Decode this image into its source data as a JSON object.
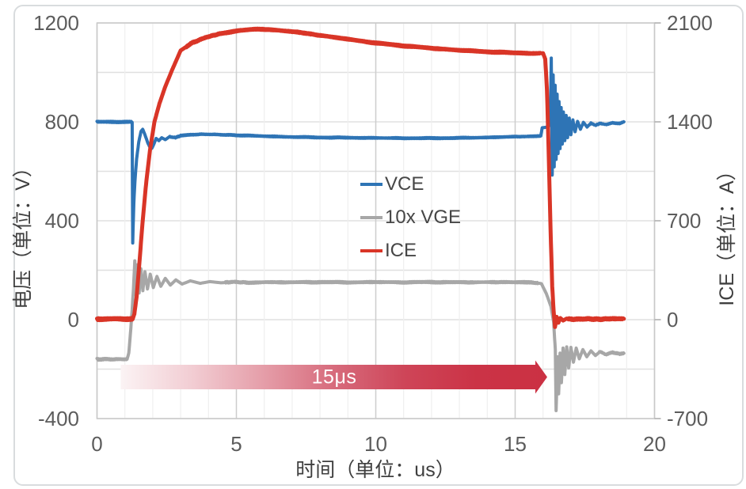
{
  "card": {
    "background": "#FFFFFF",
    "border_color": "#D9DCDE"
  },
  "chart_data": {
    "type": "line",
    "title": "",
    "x_axis": {
      "label": "时间（单位：us）",
      "range": [
        0,
        20
      ],
      "major_ticks": [
        0,
        5,
        10,
        15,
        20
      ],
      "minor_step": 1,
      "grid": true
    },
    "y_axis_left": {
      "label": "电压（单位：V）",
      "range": [
        -400,
        1200
      ],
      "ticks": [
        1200,
        800,
        400,
        0,
        -400
      ],
      "grid_step": 200
    },
    "y_axis_right": {
      "label": "ICE（单位：A）",
      "range": [
        -700,
        2100
      ],
      "ticks": [
        2100,
        1400,
        700,
        0,
        -700
      ]
    },
    "legend": {
      "position": "center",
      "items": [
        {
          "label": "VCE",
          "color": "#2E74B5"
        },
        {
          "label": "10x VGE",
          "color": "#A7A7A7"
        },
        {
          "label": "ICE",
          "color": "#D93527"
        }
      ]
    },
    "annotation": {
      "label": "15μs",
      "text_color": "#FFFFFF",
      "t_start": 0.85,
      "t_end": 16.15,
      "gradient": [
        "#FBF3F4",
        "#F2CDD3",
        "#E59EA9",
        "#D76B7C",
        "#CE4558",
        "#CB3346",
        "#CB3143"
      ]
    },
    "grid_colors": {
      "h_line": "#E0E0E0",
      "v_minor": "#EFEFEF",
      "v_major": "#CDCDCD",
      "plot_border": "#C9C9C9",
      "right_tick": "#ABABAB"
    },
    "series": [
      {
        "name": "VCE",
        "axis": "left",
        "color": "#2E74B5",
        "width": 4,
        "seed": 11,
        "noise": [
          [
            0,
            1.23,
            3
          ],
          [
            2.6,
            15.9,
            2.5
          ],
          [
            17.6,
            18.9,
            2
          ]
        ],
        "points": [
          [
            0,
            800
          ],
          [
            1.24,
            800
          ],
          [
            1.26,
            798
          ],
          [
            1.28,
            310
          ],
          [
            1.32,
            470
          ],
          [
            1.36,
            560
          ],
          [
            1.42,
            650
          ],
          [
            1.5,
            720
          ],
          [
            1.58,
            762
          ],
          [
            1.64,
            770
          ],
          [
            1.72,
            748
          ],
          [
            1.82,
            715
          ],
          [
            1.9,
            697
          ],
          [
            1.97,
            693
          ],
          [
            2.04,
            710
          ],
          [
            2.12,
            733
          ],
          [
            2.22,
            724
          ],
          [
            2.32,
            736
          ],
          [
            2.45,
            728
          ],
          [
            2.6,
            740
          ],
          [
            2.8,
            736
          ],
          [
            3,
            744
          ],
          [
            3.3,
            747
          ],
          [
            3.7,
            750
          ],
          [
            4.2,
            749
          ],
          [
            5,
            746
          ],
          [
            6,
            742
          ],
          [
            7,
            739
          ],
          [
            8,
            737
          ],
          [
            9,
            736
          ],
          [
            10,
            735
          ],
          [
            11,
            734
          ],
          [
            12,
            734
          ],
          [
            13,
            735
          ],
          [
            14,
            737
          ],
          [
            15,
            740
          ],
          [
            15.5,
            741
          ],
          [
            15.92,
            743
          ],
          [
            15.97,
            776
          ],
          [
            16.1,
            778
          ],
          [
            16.2,
            781
          ],
          [
            16.26,
            795
          ],
          [
            16.295,
            1058
          ],
          [
            16.33,
            585
          ],
          [
            16.365,
            990
          ],
          [
            16.4,
            618
          ],
          [
            16.435,
            948
          ],
          [
            16.47,
            648
          ],
          [
            16.505,
            912
          ],
          [
            16.54,
            672
          ],
          [
            16.575,
            882
          ],
          [
            16.61,
            692
          ],
          [
            16.65,
            858
          ],
          [
            16.69,
            710
          ],
          [
            16.73,
            840
          ],
          [
            16.78,
            724
          ],
          [
            16.83,
            826
          ],
          [
            16.88,
            736
          ],
          [
            16.94,
            815
          ],
          [
            17,
            748
          ],
          [
            17.07,
            808
          ],
          [
            17.15,
            760
          ],
          [
            17.24,
            802
          ],
          [
            17.34,
            770
          ],
          [
            17.45,
            798
          ],
          [
            17.58,
            779
          ],
          [
            17.72,
            795
          ],
          [
            17.88,
            786
          ],
          [
            18.05,
            794
          ],
          [
            18.25,
            789
          ],
          [
            18.5,
            796
          ],
          [
            18.75,
            793
          ],
          [
            18.9,
            800
          ]
        ]
      },
      {
        "name": "10x VGE",
        "axis": "left",
        "color": "#A7A7A7",
        "width": 4,
        "seed": 23,
        "noise": [
          [
            0,
            1.07,
            4
          ],
          [
            4.6,
            15.85,
            3.5
          ],
          [
            18,
            18.9,
            3
          ]
        ],
        "points": [
          [
            0,
            -160
          ],
          [
            1.08,
            -160
          ],
          [
            1.14,
            -135
          ],
          [
            1.2,
            -55
          ],
          [
            1.26,
            40
          ],
          [
            1.31,
            130
          ],
          [
            1.355,
            238
          ],
          [
            1.4,
            100
          ],
          [
            1.45,
            222
          ],
          [
            1.51,
            108
          ],
          [
            1.575,
            206
          ],
          [
            1.645,
            117
          ],
          [
            1.72,
            194
          ],
          [
            1.81,
            124
          ],
          [
            1.91,
            184
          ],
          [
            2.02,
            130
          ],
          [
            2.15,
            175
          ],
          [
            2.29,
            135
          ],
          [
            2.45,
            167
          ],
          [
            2.63,
            140
          ],
          [
            2.83,
            161
          ],
          [
            3.05,
            144
          ],
          [
            3.35,
            157
          ],
          [
            3.7,
            147
          ],
          [
            4.05,
            154
          ],
          [
            4.45,
            149
          ],
          [
            4.9,
            153
          ],
          [
            5.4,
            150
          ],
          [
            6,
            152
          ],
          [
            7,
            151
          ],
          [
            8,
            152
          ],
          [
            9,
            151
          ],
          [
            10,
            152
          ],
          [
            11,
            151
          ],
          [
            12,
            152
          ],
          [
            13,
            151
          ],
          [
            14,
            152
          ],
          [
            15,
            151
          ],
          [
            15.6,
            151
          ],
          [
            15.94,
            146
          ],
          [
            16.12,
            105
          ],
          [
            16.28,
            55
          ],
          [
            16.38,
            -10
          ],
          [
            16.44,
            -120
          ],
          [
            16.47,
            -368
          ],
          [
            16.52,
            -150
          ],
          [
            16.56,
            -300
          ],
          [
            16.61,
            -135
          ],
          [
            16.66,
            -255
          ],
          [
            16.72,
            -115
          ],
          [
            16.78,
            -222
          ],
          [
            16.85,
            -110
          ],
          [
            16.92,
            -195
          ],
          [
            17,
            -112
          ],
          [
            17.09,
            -172
          ],
          [
            17.19,
            -115
          ],
          [
            17.3,
            -158
          ],
          [
            17.43,
            -121
          ],
          [
            17.57,
            -150
          ],
          [
            17.72,
            -126
          ],
          [
            17.88,
            -145
          ],
          [
            18.05,
            -129
          ],
          [
            18.25,
            -141
          ],
          [
            18.5,
            -132
          ],
          [
            18.75,
            -139
          ],
          [
            18.9,
            -136
          ]
        ]
      },
      {
        "name": "ICE",
        "axis": "right",
        "color": "#D93527",
        "width": 5,
        "seed": 37,
        "noise": [
          [
            0,
            1.27,
            10
          ],
          [
            3.2,
            15.9,
            6
          ],
          [
            16.9,
            18.9,
            8
          ]
        ],
        "points": [
          [
            0,
            5
          ],
          [
            1.28,
            5
          ],
          [
            1.34,
            40
          ],
          [
            1.42,
            160
          ],
          [
            1.52,
            400
          ],
          [
            1.63,
            680
          ],
          [
            1.76,
            960
          ],
          [
            1.9,
            1200
          ],
          [
            2.06,
            1400
          ],
          [
            2.24,
            1530
          ],
          [
            2.44,
            1645
          ],
          [
            2.7,
            1770
          ],
          [
            3,
            1905
          ],
          [
            3.4,
            1958
          ],
          [
            3.9,
            1998
          ],
          [
            4.5,
            2028
          ],
          [
            5.1,
            2047
          ],
          [
            5.8,
            2057
          ],
          [
            6.5,
            2048
          ],
          [
            7.2,
            2035
          ],
          [
            8,
            2012
          ],
          [
            9,
            1985
          ],
          [
            10,
            1958
          ],
          [
            11,
            1938
          ],
          [
            12,
            1921
          ],
          [
            13,
            1907
          ],
          [
            14,
            1896
          ],
          [
            15,
            1888
          ],
          [
            15.6,
            1884
          ],
          [
            16,
            1886
          ],
          [
            16.08,
            1845
          ],
          [
            16.14,
            1630
          ],
          [
            16.2,
            1210
          ],
          [
            16.27,
            640
          ],
          [
            16.33,
            235
          ],
          [
            16.38,
            62
          ],
          [
            16.43,
            -52
          ],
          [
            16.49,
            20
          ],
          [
            16.55,
            -22
          ],
          [
            16.62,
            12
          ],
          [
            16.72,
            -6
          ],
          [
            16.85,
            8
          ],
          [
            17.1,
            2
          ],
          [
            17.5,
            6
          ],
          [
            18,
            3
          ],
          [
            18.5,
            7
          ],
          [
            18.9,
            6
          ]
        ]
      }
    ]
  }
}
